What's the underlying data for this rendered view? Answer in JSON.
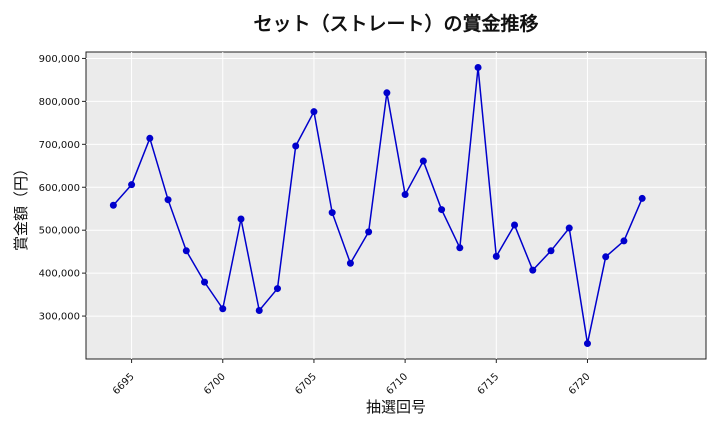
{
  "chart_data": {
    "type": "line",
    "title": "セット（ストレート）の賞金推移",
    "xlabel": "抽選回号",
    "ylabel": "賞金額（円）",
    "x_ticks": [
      6695,
      6700,
      6705,
      6710,
      6715,
      6720
    ],
    "y_ticks": [
      300000,
      400000,
      500000,
      600000,
      700000,
      800000,
      900000
    ],
    "y_tick_labels": [
      "300,000",
      "400,000",
      "500,000",
      "600,000",
      "700,000",
      "800,000",
      "900,000"
    ],
    "xlim": [
      6692.5,
      6726.5
    ],
    "ylim": [
      200000,
      915000
    ],
    "grid": true,
    "series": [
      {
        "color": "#0000cc",
        "x": [
          6694,
          6695,
          6696,
          6697,
          6698,
          6699,
          6700,
          6701,
          6702,
          6703,
          6704,
          6705,
          6706,
          6707,
          6708,
          6709,
          6710,
          6711,
          6712,
          6713,
          6714,
          6715,
          6716,
          6717,
          6718,
          6719,
          6720,
          6721,
          6722,
          6723
        ],
        "y": [
          558000,
          606000,
          714000,
          571000,
          452000,
          379000,
          317000,
          526000,
          313000,
          364000,
          696000,
          776000,
          541000,
          423000,
          496000,
          820000,
          583000,
          661000,
          548000,
          459000,
          879000,
          439000,
          512000,
          407000,
          452000,
          505000,
          236000,
          438000,
          475000,
          574000
        ]
      }
    ]
  }
}
